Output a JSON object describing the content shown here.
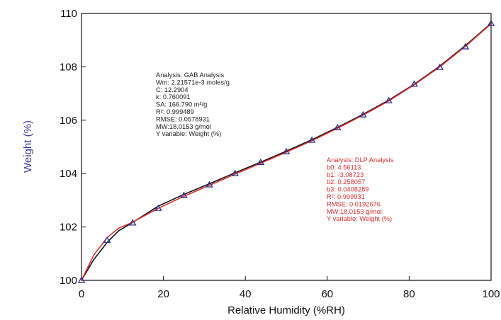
{
  "chart_data": {
    "type": "scatter",
    "xlabel": "Relative Humidity (%RH)",
    "ylabel": "Weight (%)",
    "xlim": [
      0,
      100
    ],
    "ylim": [
      100,
      110
    ],
    "x_ticks": [
      "0",
      "20",
      "40",
      "60",
      "80",
      "100"
    ],
    "y_ticks": [
      "100",
      "102",
      "104",
      "106",
      "108",
      "110"
    ],
    "grid": false,
    "series": [
      {
        "kind": "points",
        "marker": "triangle",
        "color": "#2f2f8f",
        "x": [
          0,
          6.25,
          12.5,
          18.75,
          25,
          31.25,
          37.5,
          43.75,
          50,
          56.25,
          62.5,
          68.75,
          75,
          81.25,
          87.5,
          93.75,
          100
        ],
        "y": [
          100.0,
          101.5,
          102.15,
          102.7,
          103.18,
          103.58,
          104.0,
          104.42,
          104.82,
          105.25,
          105.72,
          106.2,
          106.73,
          107.35,
          107.98,
          108.75,
          109.62
        ]
      },
      {
        "kind": "line",
        "color": "#111111",
        "x": [
          0,
          3,
          6.25,
          9,
          12.5,
          18.75,
          25,
          31.25,
          37.5,
          43.75,
          50,
          56.25,
          62.5,
          68.75,
          75,
          81.25,
          87.5,
          93.75,
          100
        ],
        "y": [
          100.0,
          100.78,
          101.42,
          101.85,
          102.17,
          102.78,
          103.22,
          103.62,
          104.03,
          104.43,
          104.84,
          105.27,
          105.73,
          106.22,
          106.75,
          107.35,
          108.03,
          108.8,
          109.63
        ]
      },
      {
        "kind": "line",
        "color": "#e03030",
        "x": [
          0,
          3,
          6.25,
          9,
          12.5,
          18.75,
          25,
          31.25,
          37.5,
          43.75,
          50,
          56.25,
          62.5,
          68.75,
          75,
          81.25,
          87.5,
          93.75,
          100
        ],
        "y": [
          100.0,
          100.95,
          101.6,
          101.95,
          102.18,
          102.7,
          103.15,
          103.56,
          103.98,
          104.39,
          104.8,
          105.23,
          105.7,
          106.19,
          106.72,
          107.33,
          108.0,
          108.77,
          109.61
        ]
      }
    ],
    "annotations": [
      {
        "color": "#222222",
        "lines": [
          "Analysis: GAB Analysis",
          "Wm: 2.21571e-3 moles/g",
          "C: 12.2904",
          "k: 0.760091",
          "SA: 166.790 m²/g",
          "R²: 0.999489",
          "RMSE: 0.0578931",
          "MW:18.0153 g/mol",
          "Y variable: Weight (%)"
        ]
      },
      {
        "color": "#e03030",
        "lines": [
          "Analysis: DLP Analysis",
          "b0: 4.56113",
          "b1: -3.08723",
          "b2: 0.258057",
          "b3: 0.0408289",
          "R²: 0.999931",
          "RMSE: 0.0192676",
          "MW:18.0153 g/mol",
          "Y variable: Weight (%)"
        ]
      }
    ]
  }
}
